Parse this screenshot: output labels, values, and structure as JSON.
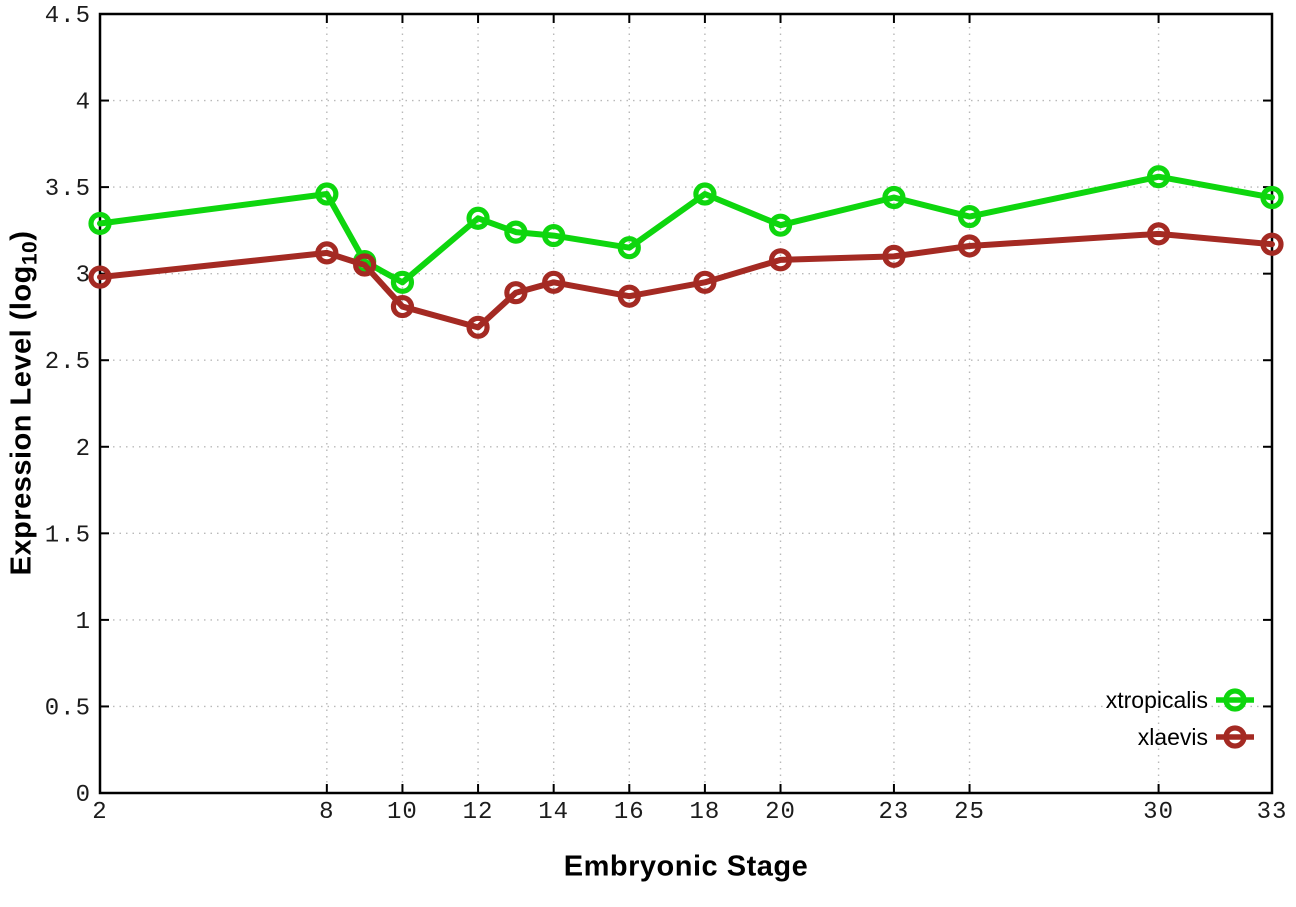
{
  "figure": {
    "background": "#ffffff",
    "border_color": "#000000",
    "grid_color": "#b9b9b9",
    "tick_label_color": "#1c1c1c"
  },
  "chart_data": {
    "type": "line",
    "xlabel": "Embryonic Stage",
    "ylabel": "Expression Level (log10)",
    "ylabel_parts": {
      "main": "Expression Level (log",
      "sub": "10",
      "end": ")"
    },
    "xlim": [
      2,
      33
    ],
    "ylim": [
      0,
      4.5
    ],
    "x_ticks": [
      2,
      8,
      10,
      12,
      14,
      16,
      18,
      20,
      23,
      25,
      30,
      33
    ],
    "y_ticks": [
      0,
      0.5,
      1,
      1.5,
      2,
      2.5,
      3,
      3.5,
      4,
      4.5
    ],
    "grid": "dotted",
    "legend_position": "bottom-right-inside",
    "x": [
      2,
      8,
      9,
      10,
      12,
      13,
      14,
      16,
      18,
      20,
      23,
      25,
      30,
      33
    ],
    "series": [
      {
        "name": "xtropicalis",
        "color": "#0ed60e",
        "marker": "open-circle",
        "values": [
          3.29,
          3.46,
          3.07,
          2.95,
          3.32,
          3.24,
          3.22,
          3.15,
          3.46,
          3.28,
          3.44,
          3.33,
          3.56,
          3.44
        ]
      },
      {
        "name": "xlaevis",
        "color": "#a42a23",
        "marker": "open-circle",
        "values": [
          2.98,
          3.12,
          3.05,
          2.81,
          2.69,
          2.89,
          2.95,
          2.87,
          2.95,
          3.08,
          3.1,
          3.16,
          3.23,
          3.17
        ]
      }
    ]
  }
}
